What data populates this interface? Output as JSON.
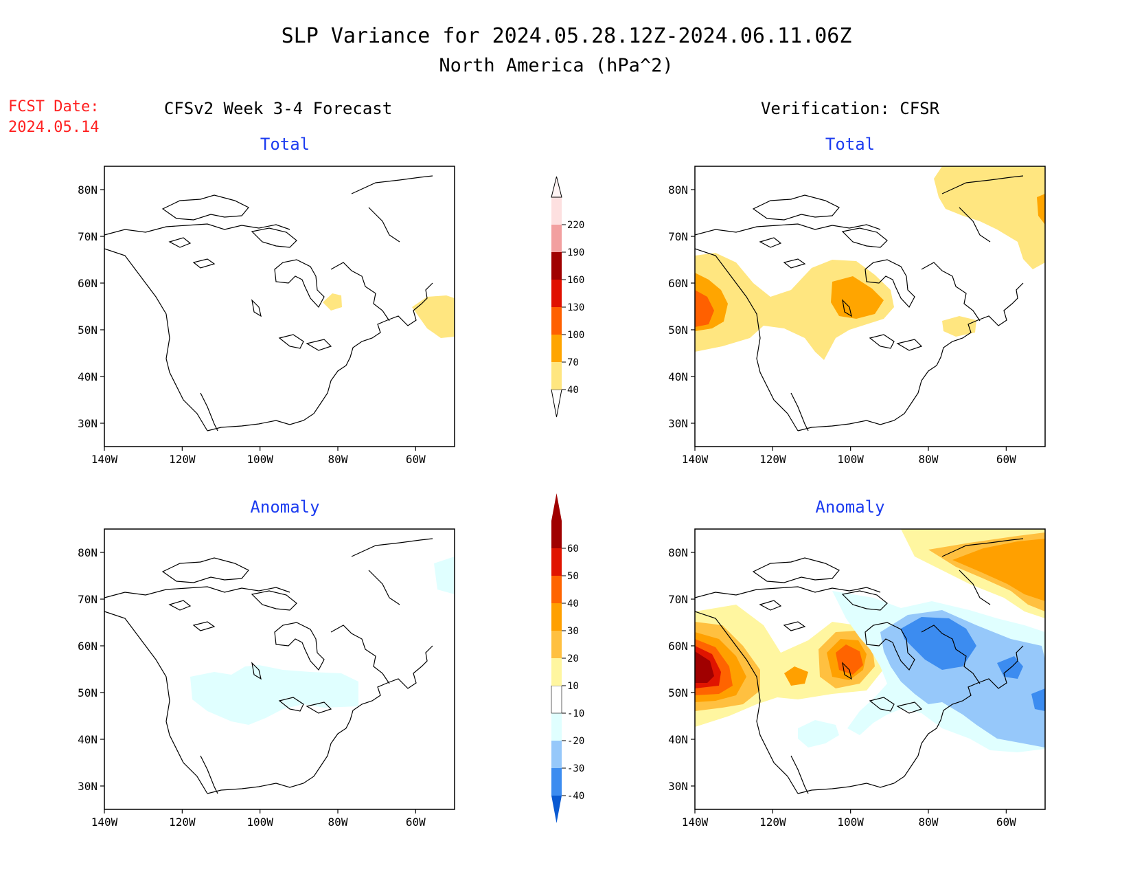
{
  "title": {
    "line1": "SLP Variance for 2024.05.28.12Z-2024.06.11.06Z",
    "line2": "North America (hPa^2)"
  },
  "fcst": {
    "label": "FCST Date:",
    "date": "2024.05.14"
  },
  "columns": {
    "left": "CFSv2 Week 3-4 Forecast",
    "right": "Verification: CFSR"
  },
  "panel_titles": {
    "top_left": "Total",
    "top_right": "Total",
    "bottom_left": "Anomaly",
    "bottom_right": "Anomaly"
  },
  "axes": {
    "lat_labels": [
      "80N",
      "70N",
      "60N",
      "50N",
      "40N",
      "30N"
    ],
    "lat_values": [
      80,
      70,
      60,
      50,
      40,
      30
    ],
    "lon_labels": [
      "140W",
      "120W",
      "100W",
      "80W",
      "60W"
    ],
    "lon_values": [
      -140,
      -120,
      -100,
      -80,
      -60
    ],
    "lat_range": [
      25,
      85
    ],
    "lon_range": [
      -140,
      -50
    ]
  },
  "colorbars": {
    "total": {
      "labels": [
        "40",
        "70",
        "100",
        "130",
        "160",
        "190",
        "220"
      ],
      "colors": [
        "#ffe680",
        "#ffa500",
        "#ff6000",
        "#e01000",
        "#a00000",
        "#f2a0a0",
        "#fde0e0"
      ]
    },
    "anomaly": {
      "labels": [
        "-40",
        "-30",
        "-20",
        "-10",
        "10",
        "20",
        "30",
        "40",
        "50",
        "60"
      ],
      "colors": [
        "#0a5ad2",
        "#3c8cf0",
        "#96c8fa",
        "#e0ffff",
        "#ffffff",
        "#fff6a0",
        "#ffc040",
        "#ffa000",
        "#ff6400",
        "#e01400",
        "#a00000"
      ]
    }
  },
  "colors": {
    "title_blue": "#1c3cf0",
    "fcst_red": "#ff2020"
  }
}
